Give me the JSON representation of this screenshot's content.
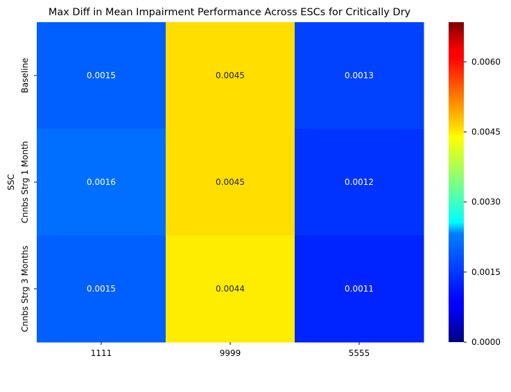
{
  "chart_data": {
    "type": "heatmap",
    "title": "Max Diff in Mean Impairment Performance Across ESCs for Critically Dry",
    "xlabel": "",
    "ylabel": "SSC",
    "x_categories": [
      "1111",
      "9999",
      "5555"
    ],
    "y_categories": [
      "Baseline",
      "Cnnbs Strg 1 Month",
      "Cnnbs Strg 3 Months"
    ],
    "values": [
      [
        0.0015,
        0.0045,
        0.0013
      ],
      [
        0.0016,
        0.0045,
        0.0012
      ],
      [
        0.0015,
        0.0044,
        0.0011
      ]
    ],
    "annotations": [
      [
        "0.0015",
        "0.0045",
        "0.0013"
      ],
      [
        "0.0016",
        "0.0045",
        "0.0012"
      ],
      [
        "0.0015",
        "0.0044",
        "0.0011"
      ]
    ],
    "colorbar": {
      "colormap": "jet",
      "range": [
        0,
        0.00685
      ],
      "ticks": [
        0.0,
        0.0015,
        0.003,
        0.0045,
        0.006
      ],
      "tick_labels": [
        "0.0000",
        "0.0015",
        "0.0030",
        "0.0045",
        "0.0060"
      ]
    }
  }
}
